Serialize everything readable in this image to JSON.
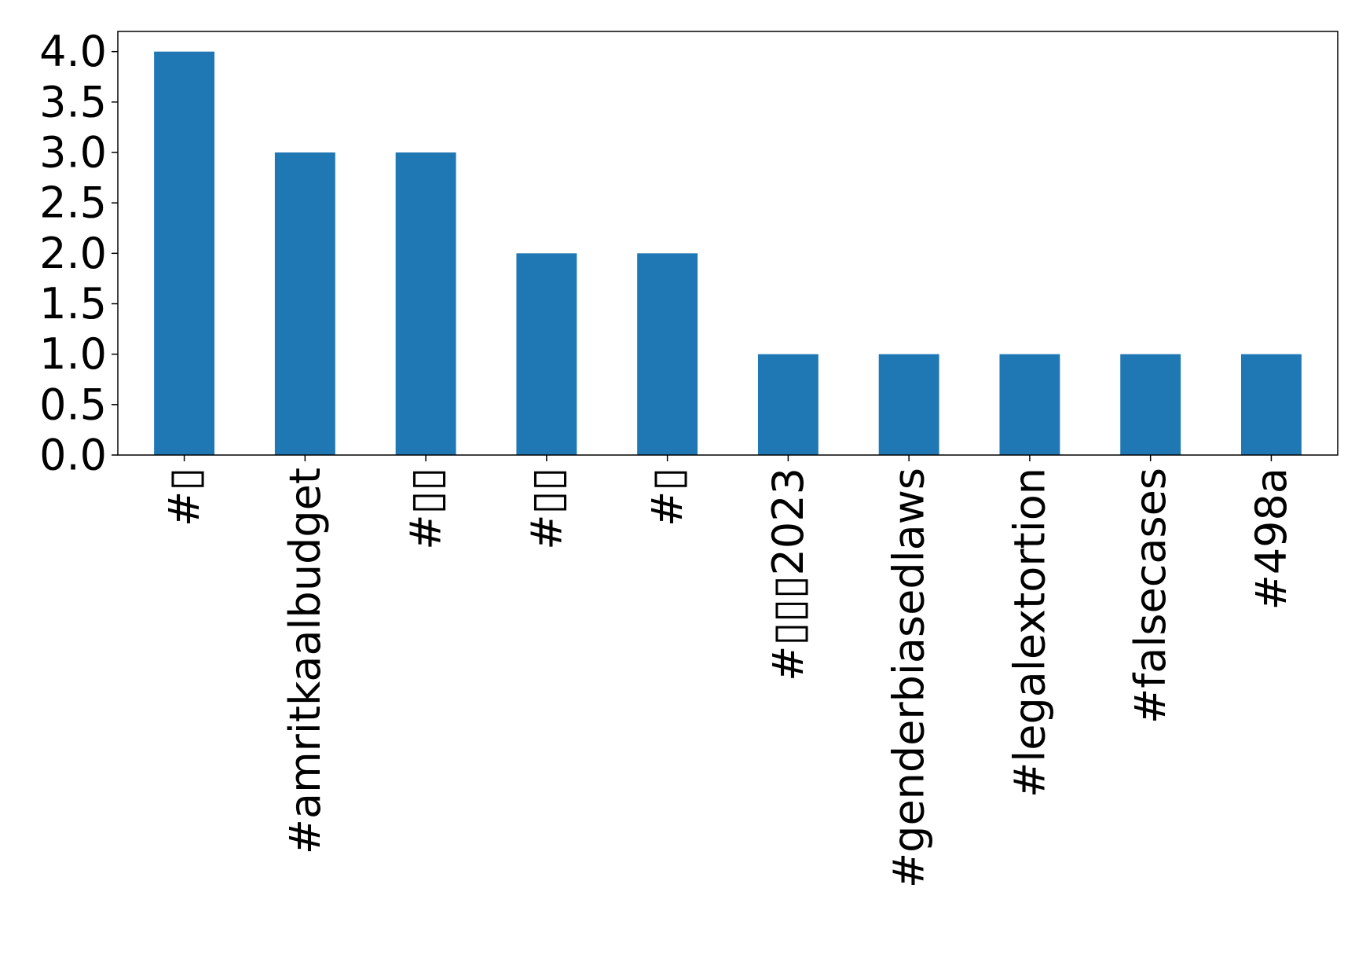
{
  "chart_data": {
    "type": "bar",
    "categories": [
      "#▯",
      "#amritkaalbudget",
      "#▯▯",
      "#▯▯",
      "#▯",
      "#▯▯▯2023",
      "#genderbiasedlaws",
      "#legalextortion",
      "#falsecases",
      "#498a"
    ],
    "values": [
      4,
      3,
      3,
      2,
      2,
      1,
      1,
      1,
      1,
      1
    ],
    "yticks": [
      "0.0",
      "0.5",
      "1.0",
      "1.5",
      "2.0",
      "2.5",
      "3.0",
      "3.5",
      "4.0"
    ],
    "ylim": [
      0,
      4.2
    ],
    "title": "",
    "xlabel": "",
    "ylabel": "",
    "bar_color": "#1f77b4",
    "grid": false,
    "legend": "none"
  }
}
